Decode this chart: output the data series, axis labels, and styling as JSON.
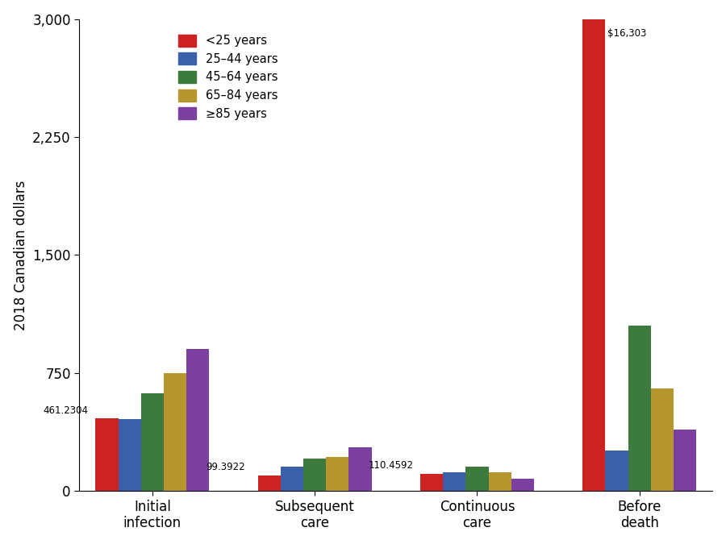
{
  "categories": [
    "Initial\ninfection",
    "Subsequent\ncare",
    "Continuous\ncare",
    "Before\ndeath"
  ],
  "age_groups": [
    "<25 years",
    "25–44 years",
    "45–64 years",
    "65–84 years",
    "≥85 years"
  ],
  "colors": [
    "#cc2222",
    "#3c5faa",
    "#3d7a3d",
    "#b8962e",
    "#7b3fa0"
  ],
  "values": [
    [
      461.2304,
      455.0,
      620.0,
      750.0,
      900.0
    ],
    [
      99.3922,
      155.0,
      205.0,
      215.0,
      275.0
    ],
    [
      110.4592,
      120.0,
      155.0,
      120.0,
      75.0
    ],
    [
      3000.0,
      255.0,
      1050.0,
      650.0,
      390.0
    ]
  ],
  "annotations": [
    {
      "phase_idx": 0,
      "bar_idx": 0,
      "text": "461.2304"
    },
    {
      "phase_idx": 1,
      "bar_idx": 0,
      "text": "99.3922"
    },
    {
      "phase_idx": 2,
      "bar_idx": 0,
      "text": "110.4592"
    },
    {
      "phase_idx": 3,
      "bar_idx": 0,
      "text": "$16,303"
    }
  ],
  "ylim": [
    0,
    3000
  ],
  "yticks": [
    0,
    750,
    1500,
    2250,
    3000
  ],
  "ytick_labels": [
    "0",
    "750",
    "1,500",
    "2,250",
    "3,000"
  ],
  "ylabel": "2018 Canadian dollars",
  "bar_width": 0.14,
  "background_color": "#ffffff",
  "annotation_fontsize": 8.5,
  "axis_fontsize": 12,
  "legend_fontsize": 10.5
}
